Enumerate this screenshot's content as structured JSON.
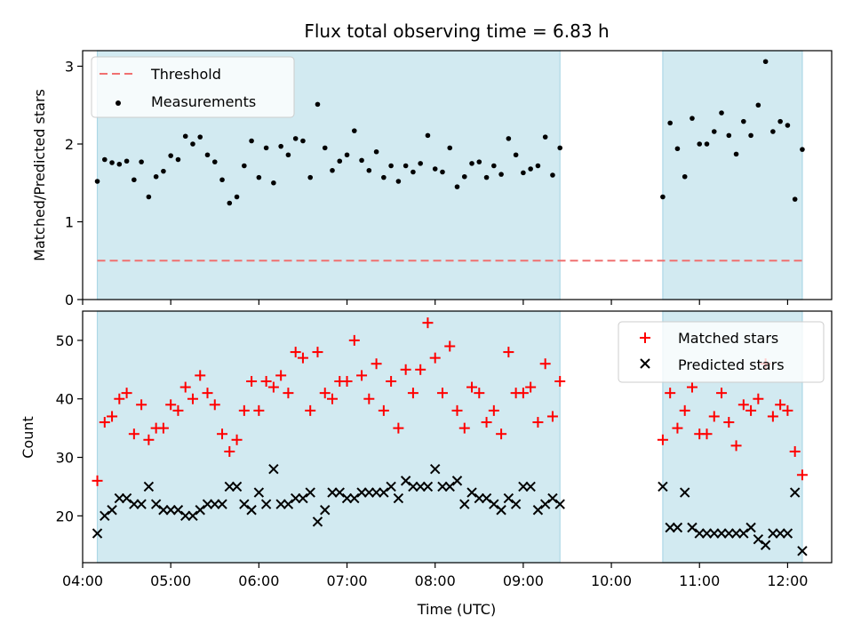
{
  "chart_data": [
    {
      "type": "scatter",
      "panel": "top",
      "title": "Flux total observing time = 6.83 h",
      "xlabel": "",
      "ylabel": "Matched/Predicted stars",
      "ylim": [
        0,
        3.2
      ],
      "yticks": [
        0,
        1,
        2,
        3
      ],
      "xlim": [
        "04:00",
        "12:30"
      ],
      "xticks": [
        "04:00",
        "05:00",
        "06:00",
        "07:00",
        "08:00",
        "09:00",
        "10:00",
        "11:00",
        "12:00"
      ],
      "shaded_intervals": [
        [
          "04:10",
          "09:25"
        ],
        [
          "10:35",
          "12:10"
        ]
      ],
      "threshold": {
        "name": "Threshold",
        "value": 0.5,
        "color": "#f07070"
      },
      "legend": {
        "placement": "top-left",
        "entries": [
          "Threshold",
          "Measurements"
        ]
      },
      "series": [
        {
          "name": "Measurements",
          "color": "#000000",
          "points": [
            [
              "04:10",
              1.52
            ],
            [
              "04:15",
              1.8
            ],
            [
              "04:20",
              1.76
            ],
            [
              "04:25",
              1.74
            ],
            [
              "04:30",
              1.78
            ],
            [
              "04:35",
              1.54
            ],
            [
              "04:40",
              1.77
            ],
            [
              "04:45",
              1.32
            ],
            [
              "04:50",
              1.58
            ],
            [
              "04:55",
              1.65
            ],
            [
              "05:00",
              1.85
            ],
            [
              "05:05",
              1.8
            ],
            [
              "05:10",
              2.1
            ],
            [
              "05:15",
              2.0
            ],
            [
              "05:20",
              2.09
            ],
            [
              "05:25",
              1.86
            ],
            [
              "05:30",
              1.77
            ],
            [
              "05:35",
              1.54
            ],
            [
              "05:40",
              1.24
            ],
            [
              "05:45",
              1.32
            ],
            [
              "05:50",
              1.72
            ],
            [
              "05:55",
              2.04
            ],
            [
              "06:00",
              1.57
            ],
            [
              "06:05",
              1.95
            ],
            [
              "06:10",
              1.5
            ],
            [
              "06:15",
              1.97
            ],
            [
              "06:20",
              1.86
            ],
            [
              "06:25",
              2.07
            ],
            [
              "06:30",
              2.04
            ],
            [
              "06:35",
              1.57
            ],
            [
              "06:40",
              2.51
            ],
            [
              "06:45",
              1.95
            ],
            [
              "06:50",
              1.66
            ],
            [
              "06:55",
              1.78
            ],
            [
              "07:00",
              1.86
            ],
            [
              "07:05",
              2.17
            ],
            [
              "07:10",
              1.79
            ],
            [
              "07:15",
              1.66
            ],
            [
              "07:20",
              1.9
            ],
            [
              "07:25",
              1.57
            ],
            [
              "07:30",
              1.72
            ],
            [
              "07:35",
              1.52
            ],
            [
              "07:40",
              1.72
            ],
            [
              "07:45",
              1.64
            ],
            [
              "07:50",
              1.75
            ],
            [
              "07:55",
              2.11
            ],
            [
              "08:00",
              1.68
            ],
            [
              "08:05",
              1.64
            ],
            [
              "08:10",
              1.95
            ],
            [
              "08:15",
              1.45
            ],
            [
              "08:20",
              1.58
            ],
            [
              "08:25",
              1.75
            ],
            [
              "08:30",
              1.77
            ],
            [
              "08:35",
              1.57
            ],
            [
              "08:40",
              1.72
            ],
            [
              "08:45",
              1.61
            ],
            [
              "08:50",
              2.07
            ],
            [
              "08:55",
              1.86
            ],
            [
              "09:00",
              1.63
            ],
            [
              "09:05",
              1.68
            ],
            [
              "09:10",
              1.72
            ],
            [
              "09:15",
              2.09
            ],
            [
              "09:20",
              1.6
            ],
            [
              "09:25",
              1.95
            ],
            [
              "10:35",
              1.32
            ],
            [
              "10:40",
              2.27
            ],
            [
              "10:45",
              1.94
            ],
            [
              "10:50",
              1.58
            ],
            [
              "10:55",
              2.33
            ],
            [
              "11:00",
              2.0
            ],
            [
              "11:05",
              2.0
            ],
            [
              "11:10",
              2.16
            ],
            [
              "11:15",
              2.4
            ],
            [
              "11:20",
              2.11
            ],
            [
              "11:25",
              1.87
            ],
            [
              "11:30",
              2.29
            ],
            [
              "11:35",
              2.11
            ],
            [
              "11:40",
              2.5
            ],
            [
              "11:45",
              3.06
            ],
            [
              "11:50",
              2.16
            ],
            [
              "11:55",
              2.29
            ],
            [
              "12:00",
              2.24
            ],
            [
              "12:05",
              1.29
            ],
            [
              "12:10",
              1.93
            ]
          ]
        }
      ]
    },
    {
      "type": "scatter",
      "panel": "bottom",
      "title": "",
      "xlabel": "Time (UTC)",
      "ylabel": "Count",
      "ylim": [
        12,
        55
      ],
      "yticks": [
        20,
        30,
        40,
        50
      ],
      "xlim": [
        "04:00",
        "12:30"
      ],
      "xticks": [
        "04:00",
        "05:00",
        "06:00",
        "07:00",
        "08:00",
        "09:00",
        "10:00",
        "11:00",
        "12:00"
      ],
      "shaded_intervals": [
        [
          "04:10",
          "09:25"
        ],
        [
          "10:35",
          "12:10"
        ]
      ],
      "legend": {
        "placement": "top-right",
        "entries": [
          "Matched stars",
          "Predicted stars"
        ]
      },
      "series": [
        {
          "name": "Matched stars",
          "marker": "plus",
          "color": "#ff0000",
          "points": [
            [
              "04:10",
              26
            ],
            [
              "04:15",
              36
            ],
            [
              "04:20",
              37
            ],
            [
              "04:25",
              40
            ],
            [
              "04:30",
              41
            ],
            [
              "04:35",
              34
            ],
            [
              "04:40",
              39
            ],
            [
              "04:45",
              33
            ],
            [
              "04:50",
              35
            ],
            [
              "04:55",
              35
            ],
            [
              "05:00",
              39
            ],
            [
              "05:05",
              38
            ],
            [
              "05:10",
              42
            ],
            [
              "05:15",
              40
            ],
            [
              "05:20",
              44
            ],
            [
              "05:25",
              41
            ],
            [
              "05:30",
              39
            ],
            [
              "05:35",
              34
            ],
            [
              "05:40",
              31
            ],
            [
              "05:45",
              33
            ],
            [
              "05:50",
              38
            ],
            [
              "05:55",
              43
            ],
            [
              "06:00",
              38
            ],
            [
              "06:05",
              43
            ],
            [
              "06:10",
              42
            ],
            [
              "06:15",
              44
            ],
            [
              "06:20",
              41
            ],
            [
              "06:25",
              48
            ],
            [
              "06:30",
              47
            ],
            [
              "06:35",
              38
            ],
            [
              "06:40",
              48
            ],
            [
              "06:45",
              41
            ],
            [
              "06:50",
              40
            ],
            [
              "06:55",
              43
            ],
            [
              "07:00",
              43
            ],
            [
              "07:05",
              50
            ],
            [
              "07:10",
              44
            ],
            [
              "07:15",
              40
            ],
            [
              "07:20",
              46
            ],
            [
              "07:25",
              38
            ],
            [
              "07:30",
              43
            ],
            [
              "07:35",
              35
            ],
            [
              "07:40",
              45
            ],
            [
              "07:45",
              41
            ],
            [
              "07:50",
              45
            ],
            [
              "07:55",
              53
            ],
            [
              "08:00",
              47
            ],
            [
              "08:05",
              41
            ],
            [
              "08:10",
              49
            ],
            [
              "08:15",
              38
            ],
            [
              "08:20",
              35
            ],
            [
              "08:25",
              42
            ],
            [
              "08:30",
              41
            ],
            [
              "08:35",
              36
            ],
            [
              "08:40",
              38
            ],
            [
              "08:45",
              34
            ],
            [
              "08:50",
              48
            ],
            [
              "08:55",
              41
            ],
            [
              "09:00",
              41
            ],
            [
              "09:05",
              42
            ],
            [
              "09:10",
              36
            ],
            [
              "09:15",
              46
            ],
            [
              "09:20",
              37
            ],
            [
              "09:25",
              43
            ],
            [
              "10:35",
              33
            ],
            [
              "10:40",
              41
            ],
            [
              "10:45",
              35
            ],
            [
              "10:50",
              38
            ],
            [
              "10:55",
              42
            ],
            [
              "11:00",
              34
            ],
            [
              "11:05",
              34
            ],
            [
              "11:10",
              37
            ],
            [
              "11:15",
              41
            ],
            [
              "11:20",
              36
            ],
            [
              "11:25",
              32
            ],
            [
              "11:30",
              39
            ],
            [
              "11:35",
              38
            ],
            [
              "11:40",
              40
            ],
            [
              "11:45",
              46
            ],
            [
              "11:50",
              37
            ],
            [
              "11:55",
              39
            ],
            [
              "12:00",
              38
            ],
            [
              "12:05",
              31
            ],
            [
              "12:10",
              27
            ]
          ]
        },
        {
          "name": "Predicted stars",
          "marker": "x",
          "color": "#000000",
          "points": [
            [
              "04:10",
              17
            ],
            [
              "04:15",
              20
            ],
            [
              "04:20",
              21
            ],
            [
              "04:25",
              23
            ],
            [
              "04:30",
              23
            ],
            [
              "04:35",
              22
            ],
            [
              "04:40",
              22
            ],
            [
              "04:45",
              25
            ],
            [
              "04:50",
              22
            ],
            [
              "04:55",
              21
            ],
            [
              "05:00",
              21
            ],
            [
              "05:05",
              21
            ],
            [
              "05:10",
              20
            ],
            [
              "05:15",
              20
            ],
            [
              "05:20",
              21
            ],
            [
              "05:25",
              22
            ],
            [
              "05:30",
              22
            ],
            [
              "05:35",
              22
            ],
            [
              "05:40",
              25
            ],
            [
              "05:45",
              25
            ],
            [
              "05:50",
              22
            ],
            [
              "05:55",
              21
            ],
            [
              "06:00",
              24
            ],
            [
              "06:05",
              22
            ],
            [
              "06:10",
              28
            ],
            [
              "06:15",
              22
            ],
            [
              "06:20",
              22
            ],
            [
              "06:25",
              23
            ],
            [
              "06:30",
              23
            ],
            [
              "06:35",
              24
            ],
            [
              "06:40",
              19
            ],
            [
              "06:45",
              21
            ],
            [
              "06:50",
              24
            ],
            [
              "06:55",
              24
            ],
            [
              "07:00",
              23
            ],
            [
              "07:05",
              23
            ],
            [
              "07:10",
              24
            ],
            [
              "07:15",
              24
            ],
            [
              "07:20",
              24
            ],
            [
              "07:25",
              24
            ],
            [
              "07:30",
              25
            ],
            [
              "07:35",
              23
            ],
            [
              "07:40",
              26
            ],
            [
              "07:45",
              25
            ],
            [
              "07:50",
              25
            ],
            [
              "07:55",
              25
            ],
            [
              "08:00",
              28
            ],
            [
              "08:05",
              25
            ],
            [
              "08:10",
              25
            ],
            [
              "08:15",
              26
            ],
            [
              "08:20",
              22
            ],
            [
              "08:25",
              24
            ],
            [
              "08:30",
              23
            ],
            [
              "08:35",
              23
            ],
            [
              "08:40",
              22
            ],
            [
              "08:45",
              21
            ],
            [
              "08:50",
              23
            ],
            [
              "08:55",
              22
            ],
            [
              "09:00",
              25
            ],
            [
              "09:05",
              25
            ],
            [
              "09:10",
              21
            ],
            [
              "09:15",
              22
            ],
            [
              "09:20",
              23
            ],
            [
              "09:25",
              22
            ],
            [
              "10:35",
              25
            ],
            [
              "10:40",
              18
            ],
            [
              "10:45",
              18
            ],
            [
              "10:50",
              24
            ],
            [
              "10:55",
              18
            ],
            [
              "11:00",
              17
            ],
            [
              "11:05",
              17
            ],
            [
              "11:10",
              17
            ],
            [
              "11:15",
              17
            ],
            [
              "11:20",
              17
            ],
            [
              "11:25",
              17
            ],
            [
              "11:30",
              17
            ],
            [
              "11:35",
              18
            ],
            [
              "11:40",
              16
            ],
            [
              "11:45",
              15
            ],
            [
              "11:50",
              17
            ],
            [
              "11:55",
              17
            ],
            [
              "12:00",
              17
            ],
            [
              "12:05",
              24
            ],
            [
              "12:10",
              14
            ]
          ]
        }
      ]
    }
  ],
  "colors": {
    "shade": "#add8e6",
    "threshold": "#f07070",
    "matched": "#ff0000",
    "predicted": "#000000",
    "measurements": "#000000"
  }
}
